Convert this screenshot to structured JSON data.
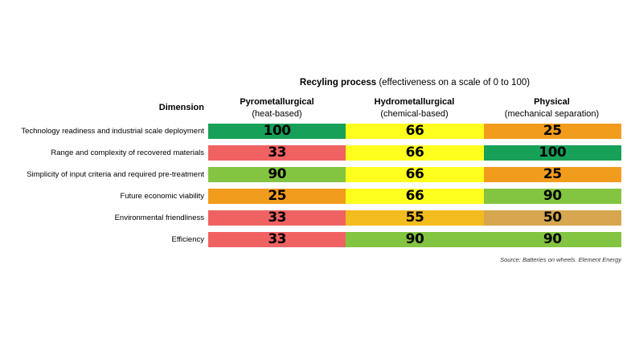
{
  "chart_data": {
    "type": "table",
    "title_bold": "Recyling process",
    "title_rest": " (effectiveness on a scale of 0 to 100)",
    "row_header": "Dimension",
    "columns": [
      {
        "name": "Pyrometallurgical",
        "sub": "(heat-based)"
      },
      {
        "name": "Hydrometallurgical",
        "sub": "(chemical-based)"
      },
      {
        "name": "Physical",
        "sub": "(mechanical separation)"
      }
    ],
    "rows": [
      {
        "label": "Technology readiness and industrial scale deployment",
        "values": [
          100,
          66,
          25
        ]
      },
      {
        "label": "Range and complexity of recovered materials",
        "values": [
          33,
          66,
          100
        ]
      },
      {
        "label": "Simplicity of input criteria and required pre-treatment",
        "values": [
          90,
          66,
          25
        ]
      },
      {
        "label": "Future economic viability",
        "values": [
          25,
          66,
          90
        ]
      },
      {
        "label": "Environmental friendliness",
        "values": [
          33,
          55,
          50
        ]
      },
      {
        "label": "Efficiency",
        "values": [
          33,
          90,
          90
        ]
      }
    ],
    "cell_colors": [
      [
        "#17a058",
        "#ffff1e",
        "#f29c1e"
      ],
      [
        "#f06262",
        "#ffff1e",
        "#17a058"
      ],
      [
        "#83c441",
        "#ffff1e",
        "#f29c1e"
      ],
      [
        "#f29c1e",
        "#ffff1e",
        "#83c441"
      ],
      [
        "#f06262",
        "#f2bb1e",
        "#d6a74e"
      ],
      [
        "#f06262",
        "#83c441",
        "#83c441"
      ]
    ],
    "merged_cells": [
      {
        "row": 5,
        "from": 1,
        "to": 2
      }
    ],
    "source": "Source: Batteries on wheels. Element Energy"
  }
}
